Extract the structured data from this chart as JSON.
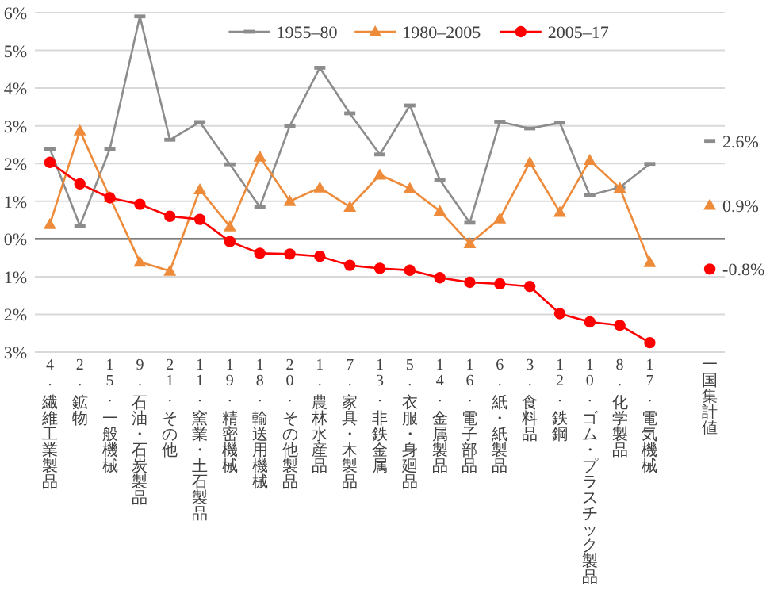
{
  "chart_data": {
    "type": "line",
    "categories": [
      "4. 繊維工業製品",
      "2. 鉱物",
      "15. 一般機械",
      "9. 石油・石炭製品",
      "21. その他",
      "11. 窯業・土石製品",
      "19. 精密機械",
      "18. 輸送用機械",
      "20. その他製品",
      "1. 農林水産品",
      "7. 家具・木製品",
      "13. 非鉄金属",
      "5. 衣服・身廻品",
      "14. 金属製品",
      "16. 電子部品",
      "6. 紙・紙製品",
      "3. 食料品",
      "12. 鉄鋼",
      "10. ゴム・プラスチック製品",
      "8. 化学製品",
      "17. 電気機械",
      null,
      "一国集計値"
    ],
    "series": [
      {
        "name": "1955–80",
        "color": "#8c8c8c",
        "marker": "square",
        "values": [
          2.39,
          0.35,
          2.39,
          5.9,
          2.63,
          3.1,
          1.98,
          0.85,
          3.0,
          4.54,
          3.33,
          2.24,
          3.54,
          1.57,
          0.43,
          3.11,
          2.93,
          3.08,
          1.16,
          1.37,
          1.99,
          null,
          2.6
        ],
        "value_labels": [
          null,
          null,
          null,
          null,
          null,
          null,
          null,
          null,
          null,
          null,
          null,
          null,
          null,
          null,
          null,
          null,
          null,
          null,
          null,
          null,
          null,
          null,
          "2.6%"
        ]
      },
      {
        "name": "1980–2005",
        "color": "#ed8b3a",
        "marker": "triangle",
        "values": [
          0.39,
          2.87,
          1.1,
          -0.61,
          -0.85,
          1.31,
          0.33,
          2.18,
          1.0,
          1.36,
          0.85,
          1.7,
          1.34,
          0.74,
          -0.12,
          0.54,
          2.03,
          0.71,
          2.09,
          1.35,
          -0.62,
          null,
          0.9
        ],
        "value_labels": [
          null,
          null,
          null,
          null,
          null,
          null,
          null,
          null,
          null,
          null,
          null,
          null,
          null,
          null,
          null,
          null,
          null,
          null,
          null,
          null,
          null,
          null,
          "0.9%"
        ]
      },
      {
        "name": "2005–17",
        "color": "#ff0000",
        "marker": "circle",
        "values": [
          2.03,
          1.46,
          1.09,
          0.92,
          0.6,
          0.52,
          -0.07,
          -0.38,
          -0.4,
          -0.46,
          -0.7,
          -0.78,
          -0.83,
          -1.03,
          -1.15,
          -1.19,
          -1.26,
          -1.98,
          -2.2,
          -2.29,
          -2.75,
          null,
          -0.8
        ],
        "value_labels": [
          null,
          null,
          null,
          null,
          null,
          null,
          null,
          null,
          null,
          null,
          null,
          null,
          null,
          null,
          null,
          null,
          null,
          null,
          null,
          null,
          null,
          null,
          "-0.8%"
        ]
      }
    ],
    "ylim": [
      -3,
      6
    ],
    "yticks": [
      {
        "value": 6,
        "label": "6%"
      },
      {
        "value": 5,
        "label": "5%"
      },
      {
        "value": 4,
        "label": "4%"
      },
      {
        "value": 3,
        "label": "3%"
      },
      {
        "value": 2,
        "label": "2%"
      },
      {
        "value": 1,
        "label": "1%"
      },
      {
        "value": 0,
        "label": "0%"
      },
      {
        "value": -1,
        "label": "1%"
      },
      {
        "value": -2,
        "label": "2%"
      },
      {
        "value": -3,
        "label": "3%"
      }
    ],
    "ref_lines": [
      {
        "axis": "y",
        "value": 0,
        "color": "#595959"
      }
    ],
    "grid": "y",
    "legend": "top"
  }
}
